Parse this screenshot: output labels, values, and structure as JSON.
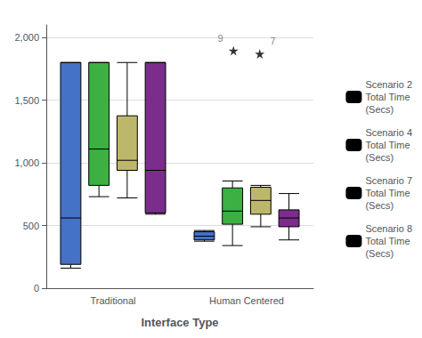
{
  "chart_data": {
    "type": "boxplot",
    "xlabel": "Interface Type",
    "categories": [
      "Traditional",
      "Human Centered"
    ],
    "series": [
      {
        "name": "Scenario 2\nTotal Time\n(Secs)",
        "color": "#4472c4",
        "values": [
          {
            "whisker_low": 160,
            "q1": 190,
            "median": 560,
            "q3": 1800,
            "whisker_high": 1800
          },
          {
            "whisker_low": 375,
            "q1": 385,
            "median": 415,
            "q3": 450,
            "whisker_high": 460
          }
        ]
      },
      {
        "name": "Scenario 4\nTotal Time\n(Secs)",
        "color": "#3cb043",
        "values": [
          {
            "whisker_low": 730,
            "q1": 820,
            "median": 1110,
            "q3": 1800,
            "whisker_high": 1800
          },
          {
            "whisker_low": 340,
            "q1": 510,
            "median": 615,
            "q3": 800,
            "whisker_high": 855
          }
        ]
      },
      {
        "name": "Scenario 7\nTotal Time\n(Secs)",
        "color": "#bdb76b",
        "values": [
          {
            "whisker_low": 720,
            "q1": 940,
            "median": 1020,
            "q3": 1375,
            "whisker_high": 1800
          },
          {
            "whisker_low": 490,
            "q1": 590,
            "median": 700,
            "q3": 805,
            "whisker_high": 820
          }
        ]
      },
      {
        "name": "Scenario 8\nTotal Time\n(Secs)",
        "color": "#7b2d8b",
        "values": [
          {
            "whisker_low": 590,
            "q1": 600,
            "median": 940,
            "q3": 1800,
            "whisker_high": 1800
          },
          {
            "whisker_low": 385,
            "q1": 490,
            "median": 560,
            "q3": 625,
            "whisker_high": 755
          }
        ]
      }
    ],
    "outliers": {
      "marker": "star",
      "color": "#000000",
      "points": [
        {
          "category": "Human Centered",
          "series": "Scenario 4\nTotal Time\n(Secs)",
          "value": 1895,
          "label": "9"
        },
        {
          "category": "Human Centered",
          "series": "Scenario 7\nTotal Time\n(Secs)",
          "value": 1870,
          "label": "7"
        }
      ]
    },
    "ylim": [
      0,
      2100
    ],
    "yticks": [
      0,
      500,
      {
        "value": 1000,
        "label": "1,000"
      },
      {
        "value": 1500,
        "label": "1,500"
      },
      {
        "value": 2000,
        "label": "2,000"
      }
    ],
    "grid": true,
    "legend": "right"
  }
}
